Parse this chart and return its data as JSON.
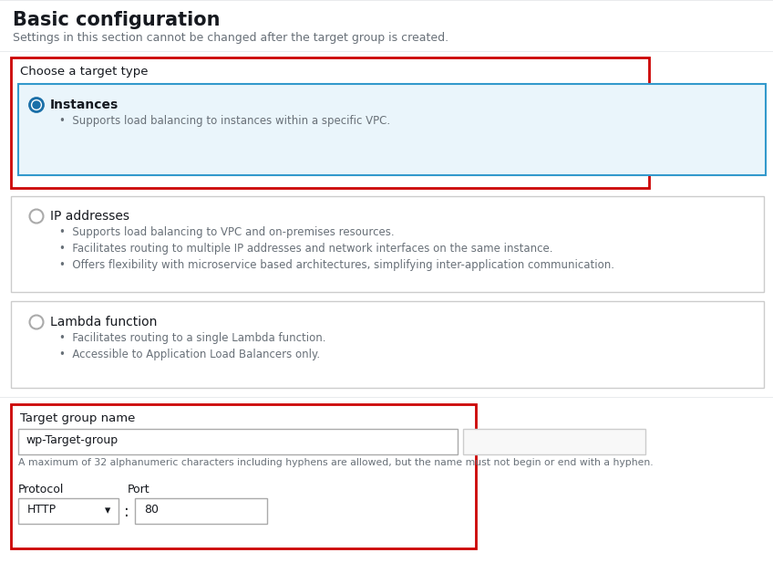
{
  "title": "Basic configuration",
  "subtitle": "Settings in this section cannot be changed after the target group is created.",
  "bg_color": "#ffffff",
  "header_bg": "#f2f3f3",
  "section1_label": "Choose a target type",
  "option1_label": "Instances",
  "option1_desc": "Supports load balancing to instances within a specific VPC.",
  "option2_label": "IP addresses",
  "option2_descs": [
    "Supports load balancing to VPC and on-premises resources.",
    "Facilitates routing to multiple IP addresses and network interfaces on the same instance.",
    "Offers flexibility with microservice based architectures, simplifying inter-application communication."
  ],
  "option3_label": "Lambda function",
  "option3_descs": [
    "Facilitates routing to a single Lambda function.",
    "Accessible to Application Load Balancers only."
  ],
  "tg_name_label": "Target group name",
  "tg_name_value": "wp-Target-group",
  "tg_name_hint": "A maximum of 32 alphanumeric characters including hyphens are allowed, but the name must not begin or end with a hyphen.",
  "protocol_label": "Protocol",
  "protocol_value": "HTTP",
  "port_label": "Port",
  "port_value": "80",
  "red_border": "#cc0000",
  "blue_border": "#3399cc",
  "selected_bg": "#eaf5fb",
  "radio_fill": "#1a6fa8",
  "box_border": "#aaaaaa",
  "box_border_light": "#cccccc",
  "text_dark": "#16191f",
  "text_gray": "#687078",
  "text_small": "#687078",
  "divider_color": "#e9ebed"
}
